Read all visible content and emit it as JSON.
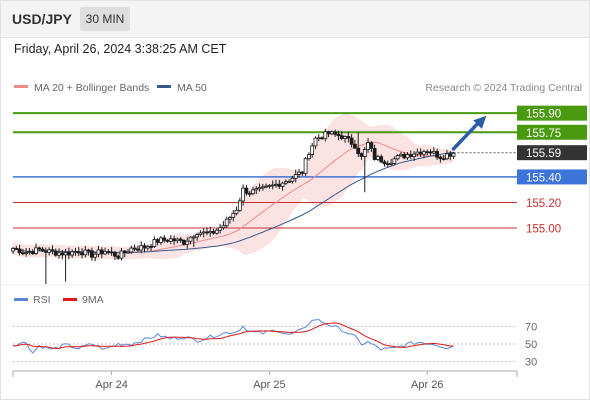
{
  "header": {
    "pair": "USD/JPY",
    "timeframe": "30 MIN",
    "datetime": "Friday, April 26, 2024 3:38:25 AM CET"
  },
  "colors": {
    "resistance": "#4a9a10",
    "support": "#cc2f2f",
    "current": "#333333",
    "pivot": "#3d74d9",
    "ma20": "#f08a8a",
    "ma50": "#36598c",
    "bollinger_fill": "#fbdada",
    "rsi": "#5a86d6",
    "rsi_ma": "#e01919",
    "arrow": "#2c5ea8"
  },
  "chart_data": [
    {
      "type": "candlestick",
      "title": "USD/JPY 30 MIN",
      "ylim": [
        154.6,
        156.05
      ],
      "xlim": [
        0,
        153
      ],
      "x_ticks": [
        {
          "label": "Apr 24",
          "x": 30
        },
        {
          "label": "Apr 25",
          "x": 78
        },
        {
          "label": "Apr 26",
          "x": 126
        }
      ],
      "legend": [
        {
          "name": "MA 20 + Bollinger Bands",
          "color": "#f08a8a"
        },
        {
          "name": "MA 50",
          "color": "#36598c"
        }
      ],
      "credit": "Research © 2024 Trading Central",
      "levels": [
        {
          "value": 155.9,
          "label": "155.90",
          "kind": "resistance"
        },
        {
          "value": 155.75,
          "label": "155.75",
          "kind": "resistance"
        },
        {
          "value": 155.59,
          "label": "155.59",
          "kind": "current"
        },
        {
          "value": 155.4,
          "label": "155.40",
          "kind": "pivot"
        },
        {
          "value": 155.2,
          "label": "155.20",
          "kind": "support"
        },
        {
          "value": 155.0,
          "label": "155.00",
          "kind": "support"
        }
      ],
      "projection": {
        "from": [
          134,
          155.62
        ],
        "to": [
          144,
          155.88
        ]
      },
      "close_anchors": [
        [
          0,
          154.84
        ],
        [
          4,
          154.81
        ],
        [
          8,
          154.83
        ],
        [
          12,
          154.81
        ],
        [
          16,
          154.8
        ],
        [
          20,
          154.82
        ],
        [
          24,
          154.79
        ],
        [
          28,
          154.82
        ],
        [
          32,
          154.78
        ],
        [
          36,
          154.84
        ],
        [
          40,
          154.85
        ],
        [
          44,
          154.9
        ],
        [
          48,
          154.91
        ],
        [
          52,
          154.89
        ],
        [
          56,
          154.97
        ],
        [
          60,
          154.95
        ],
        [
          64,
          155.02
        ],
        [
          68,
          155.15
        ],
        [
          70,
          155.3
        ],
        [
          72,
          155.28
        ],
        [
          76,
          155.3
        ],
        [
          80,
          155.34
        ],
        [
          84,
          155.38
        ],
        [
          88,
          155.44
        ],
        [
          90,
          155.6
        ],
        [
          92,
          155.7
        ],
        [
          96,
          155.74
        ],
        [
          100,
          155.72
        ],
        [
          104,
          155.65
        ],
        [
          106,
          155.55
        ],
        [
          108,
          155.66
        ],
        [
          110,
          155.55
        ],
        [
          114,
          155.52
        ],
        [
          118,
          155.56
        ],
        [
          122,
          155.59
        ],
        [
          126,
          155.61
        ],
        [
          130,
          155.56
        ],
        [
          134,
          155.59
        ]
      ],
      "spikes": [
        {
          "x": 10,
          "low": 154.56
        },
        {
          "x": 16,
          "low": 154.58
        },
        {
          "x": 55,
          "low": 154.85
        },
        {
          "x": 105,
          "high": 155.75
        },
        {
          "x": 107,
          "low": 155.28
        }
      ]
    },
    {
      "type": "line",
      "title": "RSI",
      "ylim": [
        15,
        85
      ],
      "yticks": [
        "70",
        "50",
        "30"
      ],
      "series": [
        {
          "name": "RSI",
          "color": "#5a86d6"
        },
        {
          "name": "9MA",
          "color": "#e01919"
        }
      ],
      "rsi_anchors": [
        [
          0,
          49
        ],
        [
          4,
          52
        ],
        [
          6,
          40
        ],
        [
          8,
          48
        ],
        [
          12,
          44
        ],
        [
          16,
          49
        ],
        [
          20,
          45
        ],
        [
          24,
          50
        ],
        [
          28,
          44
        ],
        [
          32,
          50
        ],
        [
          36,
          50
        ],
        [
          40,
          55
        ],
        [
          44,
          60
        ],
        [
          48,
          56
        ],
        [
          52,
          58
        ],
        [
          56,
          54
        ],
        [
          60,
          58
        ],
        [
          64,
          62
        ],
        [
          68,
          64
        ],
        [
          70,
          70
        ],
        [
          72,
          64
        ],
        [
          76,
          62
        ],
        [
          80,
          66
        ],
        [
          84,
          60
        ],
        [
          88,
          66
        ],
        [
          90,
          74
        ],
        [
          92,
          78
        ],
        [
          96,
          72
        ],
        [
          100,
          66
        ],
        [
          104,
          58
        ],
        [
          106,
          50
        ],
        [
          108,
          52
        ],
        [
          112,
          44
        ],
        [
          116,
          45
        ],
        [
          120,
          50
        ],
        [
          124,
          52
        ],
        [
          128,
          50
        ],
        [
          132,
          46
        ],
        [
          134,
          48
        ]
      ]
    }
  ]
}
